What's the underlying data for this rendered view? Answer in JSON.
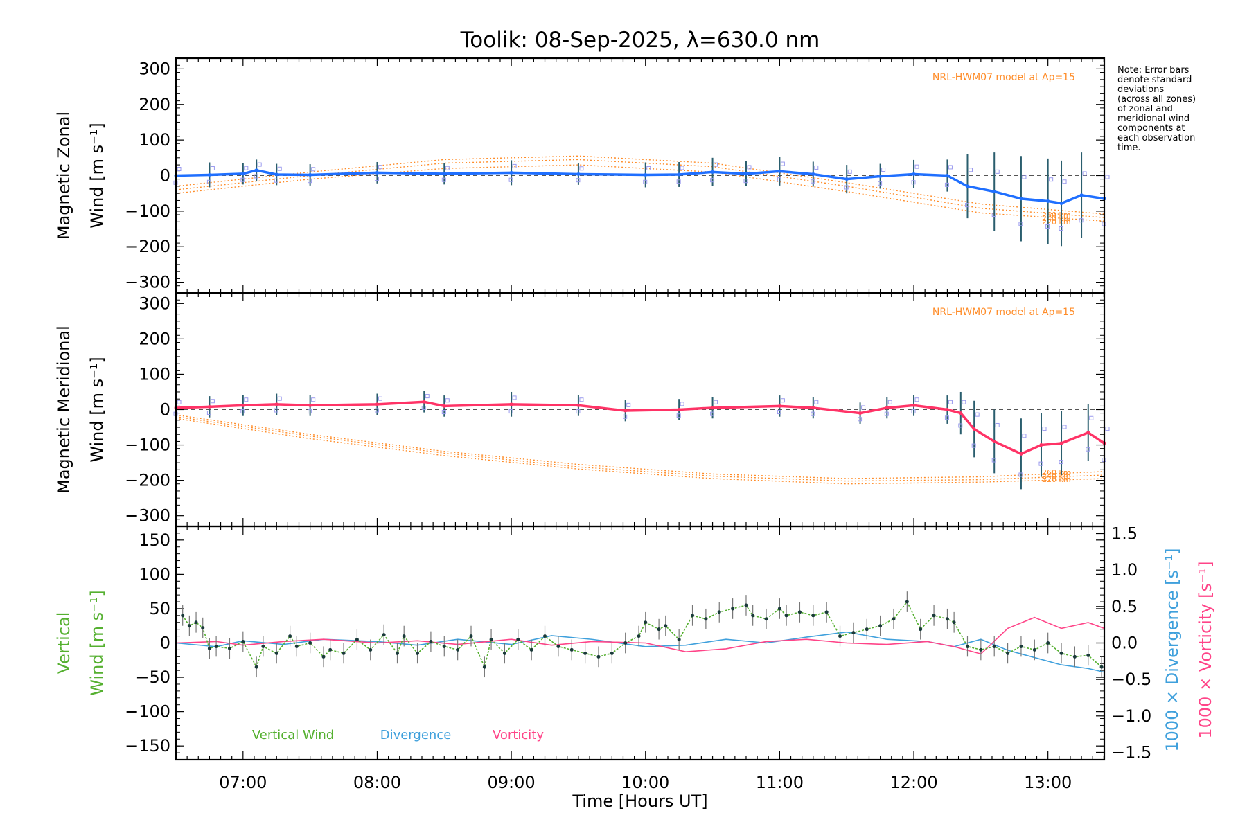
{
  "chart_data": {
    "title": "Toolik: 08-Sep-2025, λ=630.0 nm",
    "xlabel": "Time [Hours UT]",
    "x_ticks": [
      7,
      8,
      9,
      10,
      11,
      12,
      13
    ],
    "x_tick_labels": [
      "07:00",
      "08:00",
      "09:00",
      "10:00",
      "11:00",
      "12:00",
      "13:00"
    ],
    "xlim": [
      6.5,
      13.42
    ],
    "note": "Note: Error bars\ndenote standard\ndeviations\n(across all zones)\nof zonal and\nmeridional wind\ncomponents at\neach observation\ntime.",
    "colors": {
      "zonal": "#1f6fff",
      "meridional": "#ff3366",
      "vertical": "#55b030",
      "divergence": "#3fa0dc",
      "vorticity": "#ff4488",
      "model": "#ff8c28",
      "zones": "#9a9aee"
    },
    "panels": [
      {
        "type": "line",
        "name": "zonal",
        "ylabel_line1": "Magnetic Zonal",
        "ylabel_line2": "Wind [m s⁻¹]",
        "ylim": [
          -330,
          330
        ],
        "yticks": [
          -300,
          -200,
          -100,
          0,
          100,
          200,
          300
        ],
        "model_label": "NRL-HWM07 model at Ap=15",
        "model_alt_labels": [
          "260 km",
          "240 km",
          "220 km"
        ],
        "series": {
          "name": "Zonal wind",
          "x": [
            6.5,
            6.75,
            7.0,
            7.1,
            7.25,
            7.5,
            8.0,
            8.5,
            9.0,
            9.5,
            10.0,
            10.25,
            10.5,
            10.75,
            11.0,
            11.25,
            11.5,
            11.75,
            12.0,
            12.25,
            12.4,
            12.6,
            12.8,
            13.0,
            13.1,
            13.25,
            13.42
          ],
          "y": [
            0,
            2,
            5,
            15,
            3,
            2,
            8,
            5,
            8,
            4,
            2,
            3,
            10,
            5,
            12,
            4,
            -10,
            -2,
            4,
            0,
            -30,
            -45,
            -65,
            -72,
            -78,
            -55,
            -65
          ],
          "err": [
            35,
            35,
            30,
            30,
            30,
            30,
            30,
            30,
            35,
            30,
            35,
            35,
            40,
            35,
            40,
            35,
            40,
            35,
            40,
            45,
            90,
            110,
            120,
            120,
            120,
            120,
            120
          ]
        },
        "models": [
          {
            "alt": "260 km",
            "x": [
              6.5,
              7.5,
              8.5,
              9.5,
              10.5,
              11.5,
              12.5,
              13.42
            ],
            "y": [
              -30,
              10,
              45,
              55,
              35,
              -20,
              -80,
              -108
            ]
          },
          {
            "alt": "240 km",
            "x": [
              6.5,
              7.5,
              8.5,
              9.5,
              10.5,
              11.5,
              12.5,
              13.42
            ],
            "y": [
              -40,
              0,
              35,
              45,
              25,
              -30,
              -92,
              -118
            ]
          },
          {
            "alt": "220 km",
            "x": [
              6.5,
              7.5,
              8.5,
              9.5,
              10.5,
              11.5,
              12.5,
              13.42
            ],
            "y": [
              -50,
              -10,
              20,
              30,
              10,
              -45,
              -105,
              -128
            ]
          }
        ]
      },
      {
        "type": "line",
        "name": "meridional",
        "ylabel_line1": "Magnetic Meridional",
        "ylabel_line2": "Wind [m s⁻¹]",
        "ylim": [
          -330,
          330
        ],
        "yticks": [
          -300,
          -200,
          -100,
          0,
          100,
          200,
          300
        ],
        "model_label": "NRL-HWM07 model at Ap=15",
        "model_alt_labels": [
          "260 km",
          "240 km",
          "220 km"
        ],
        "series": {
          "name": "Meridional wind",
          "x": [
            6.5,
            6.75,
            7.0,
            7.25,
            7.5,
            8.0,
            8.35,
            8.5,
            9.0,
            9.5,
            9.85,
            10.25,
            10.5,
            11.0,
            11.25,
            11.6,
            11.8,
            12.0,
            12.25,
            12.35,
            12.45,
            12.6,
            12.8,
            12.95,
            13.1,
            13.3,
            13.42
          ],
          "y": [
            5,
            8,
            12,
            15,
            12,
            15,
            22,
            10,
            15,
            12,
            -3,
            0,
            5,
            10,
            5,
            -10,
            5,
            12,
            0,
            -10,
            -55,
            -90,
            -125,
            -100,
            -95,
            -65,
            -95
          ],
          "err": [
            30,
            30,
            30,
            30,
            30,
            30,
            30,
            30,
            35,
            30,
            30,
            30,
            30,
            30,
            30,
            30,
            30,
            30,
            40,
            60,
            80,
            90,
            100,
            90,
            90,
            80,
            80
          ]
        },
        "models": [
          {
            "alt": "260 km",
            "x": [
              6.5,
              7.5,
              8.5,
              9.5,
              10.5,
              11.5,
              12.5,
              13.42
            ],
            "y": [
              -15,
              -70,
              -118,
              -155,
              -182,
              -195,
              -190,
              -175
            ]
          },
          {
            "alt": "240 km",
            "x": [
              6.5,
              7.5,
              8.5,
              9.5,
              10.5,
              11.5,
              12.5,
              13.42
            ],
            "y": [
              -20,
              -75,
              -123,
              -162,
              -188,
              -202,
              -198,
              -185
            ]
          },
          {
            "alt": "220 km",
            "x": [
              6.5,
              7.5,
              8.5,
              9.5,
              10.5,
              11.5,
              12.5,
              13.42
            ],
            "y": [
              -25,
              -82,
              -130,
              -168,
              -195,
              -210,
              -205,
              -195
            ]
          }
        ]
      },
      {
        "type": "line",
        "name": "vertical",
        "ylabel_line1": "Vertical",
        "ylabel_line2": "Wind [m s⁻¹]",
        "ylim": [
          -170,
          170
        ],
        "yticks": [
          -150,
          -100,
          -50,
          0,
          50,
          100,
          150
        ],
        "y2label_div": "1000 × Divergence [s⁻¹]",
        "y2label_vort": "1000 × Vorticity [s⁻¹]",
        "y2lim": [
          -1.6,
          1.6
        ],
        "y2ticks": [
          -1.5,
          -1.0,
          -0.5,
          0.0,
          0.5,
          1.0,
          1.5
        ],
        "y2tick_labels": [
          "−1.5",
          "−1.0",
          "−0.5",
          "0.0",
          "0.5",
          "1.0",
          "1.5"
        ],
        "legend": [
          "Vertical Wind",
          "Divergence",
          "Vorticity"
        ],
        "vertical": {
          "x": [
            6.55,
            6.6,
            6.65,
            6.7,
            6.75,
            6.8,
            6.9,
            7.0,
            7.1,
            7.15,
            7.25,
            7.35,
            7.4,
            7.5,
            7.6,
            7.65,
            7.75,
            7.85,
            7.95,
            8.05,
            8.15,
            8.2,
            8.3,
            8.4,
            8.5,
            8.6,
            8.7,
            8.8,
            8.85,
            8.95,
            9.05,
            9.15,
            9.25,
            9.35,
            9.45,
            9.55,
            9.65,
            9.75,
            9.85,
            9.95,
            10.0,
            10.1,
            10.15,
            10.25,
            10.35,
            10.45,
            10.55,
            10.65,
            10.75,
            10.8,
            10.9,
            11.0,
            11.05,
            11.15,
            11.25,
            11.35,
            11.45,
            11.55,
            11.65,
            11.75,
            11.85,
            11.95,
            12.05,
            12.15,
            12.25,
            12.3,
            12.4,
            12.5,
            12.6,
            12.7,
            12.8,
            12.9,
            13.0,
            13.1,
            13.2,
            13.3,
            13.4
          ],
          "y": [
            40,
            25,
            30,
            22,
            -8,
            -5,
            -8,
            2,
            -35,
            -5,
            -15,
            10,
            -5,
            0,
            -20,
            -10,
            -15,
            5,
            -10,
            12,
            -15,
            10,
            -15,
            2,
            -5,
            -10,
            10,
            -35,
            5,
            -15,
            5,
            -10,
            10,
            -5,
            -10,
            -15,
            -20,
            -15,
            0,
            10,
            30,
            20,
            25,
            5,
            40,
            35,
            45,
            50,
            55,
            40,
            35,
            50,
            40,
            45,
            40,
            45,
            10,
            15,
            20,
            25,
            35,
            60,
            20,
            40,
            35,
            30,
            -5,
            -10,
            -5,
            -15,
            -5,
            -10,
            0,
            -15,
            -20,
            -18,
            -35
          ],
          "err": [
            15,
            15,
            15,
            15,
            15,
            15,
            15,
            15,
            15,
            15,
            15,
            15,
            15,
            15,
            15,
            15,
            15,
            15,
            15,
            15,
            15,
            15,
            15,
            15,
            15,
            15,
            15,
            15,
            15,
            15,
            15,
            15,
            15,
            15,
            15,
            15,
            15,
            15,
            15,
            15,
            15,
            15,
            15,
            15,
            15,
            15,
            15,
            15,
            15,
            15,
            15,
            15,
            15,
            15,
            15,
            15,
            15,
            15,
            15,
            15,
            15,
            15,
            15,
            15,
            15,
            15,
            15,
            15,
            15,
            15,
            15,
            15,
            15,
            15,
            15,
            15,
            15
          ]
        },
        "divergence": {
          "x": [
            6.5,
            6.8,
            7.0,
            7.3,
            7.6,
            8.0,
            8.3,
            8.6,
            9.0,
            9.3,
            9.6,
            10.0,
            10.3,
            10.6,
            10.9,
            11.2,
            11.5,
            11.8,
            12.1,
            12.3,
            12.5,
            12.7,
            12.9,
            13.1,
            13.3,
            13.42
          ],
          "y": [
            0.0,
            -0.05,
            0.03,
            -0.02,
            0.05,
            0.02,
            -0.03,
            0.05,
            -0.02,
            0.1,
            0.05,
            -0.05,
            -0.03,
            0.05,
            0.0,
            0.08,
            0.15,
            0.05,
            0.02,
            -0.05,
            0.05,
            -0.1,
            -0.2,
            -0.3,
            -0.35,
            -0.4
          ]
        },
        "vorticity": {
          "x": [
            6.5,
            6.8,
            7.0,
            7.3,
            7.6,
            8.0,
            8.3,
            8.6,
            9.0,
            9.3,
            9.6,
            10.0,
            10.3,
            10.6,
            10.9,
            11.2,
            11.5,
            11.8,
            12.1,
            12.3,
            12.5,
            12.7,
            12.9,
            13.1,
            13.3,
            13.42
          ],
          "y": [
            0.0,
            0.02,
            -0.03,
            0.02,
            0.05,
            0.0,
            0.03,
            -0.02,
            0.05,
            -0.03,
            0.02,
            0.0,
            -0.12,
            -0.08,
            0.02,
            0.05,
            0.0,
            -0.02,
            0.02,
            -0.05,
            -0.15,
            0.2,
            0.35,
            0.2,
            0.28,
            0.2
          ]
        }
      }
    ]
  }
}
